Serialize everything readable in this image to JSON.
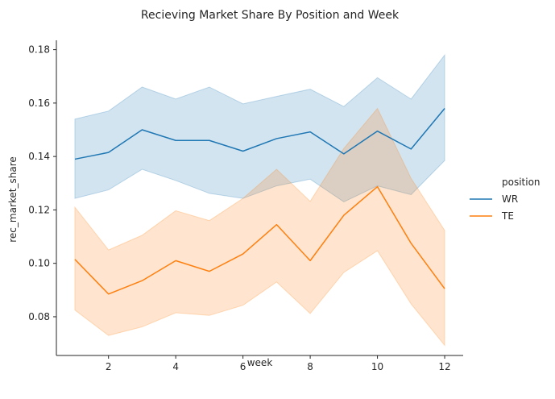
{
  "chart_data": {
    "type": "line",
    "title": "Recieving Market Share By Position and Week",
    "xlabel": "week",
    "ylabel": "rec_market_share",
    "xlim": [
      0.45,
      12.55
    ],
    "ylim": [
      0.0655,
      0.1835
    ],
    "xticks": [
      2,
      4,
      6,
      8,
      10,
      12
    ],
    "yticks": [
      0.08,
      0.1,
      0.12,
      0.14,
      0.16,
      0.18
    ],
    "ytick_labels": [
      "0.08",
      "0.10",
      "0.12",
      "0.14",
      "0.16",
      "0.18"
    ],
    "grid": false,
    "legend": {
      "title": "position",
      "placement": "right"
    },
    "x": [
      1,
      2,
      3,
      4,
      5,
      6,
      7,
      8,
      9,
      10,
      11,
      12
    ],
    "series": [
      {
        "name": "WR",
        "color": "#1f77b4",
        "values": [
          0.139,
          0.1415,
          0.15,
          0.146,
          0.146,
          0.142,
          0.1467,
          0.1492,
          0.141,
          0.1495,
          0.1428,
          0.158
        ],
        "ci_low": [
          0.1243,
          0.1275,
          0.1352,
          0.131,
          0.1262,
          0.1243,
          0.129,
          0.1315,
          0.123,
          0.129,
          0.1257,
          0.1385
        ],
        "ci_high": [
          0.154,
          0.157,
          0.166,
          0.1615,
          0.166,
          0.1597,
          0.1625,
          0.1652,
          0.1587,
          0.1695,
          0.1615,
          0.178
        ]
      },
      {
        "name": "TE",
        "color": "#ff7f0e",
        "values": [
          0.1015,
          0.0885,
          0.0935,
          0.101,
          0.097,
          0.1035,
          0.1145,
          0.101,
          0.118,
          0.1287,
          0.1075,
          0.0905
        ],
        "ci_low": [
          0.0825,
          0.073,
          0.0762,
          0.0815,
          0.0805,
          0.0843,
          0.093,
          0.0812,
          0.0966,
          0.1047,
          0.0848,
          0.0693
        ],
        "ci_high": [
          0.121,
          0.105,
          0.1105,
          0.1197,
          0.116,
          0.1243,
          0.1352,
          0.1232,
          0.143,
          0.158,
          0.1318,
          0.1123
        ]
      }
    ]
  }
}
